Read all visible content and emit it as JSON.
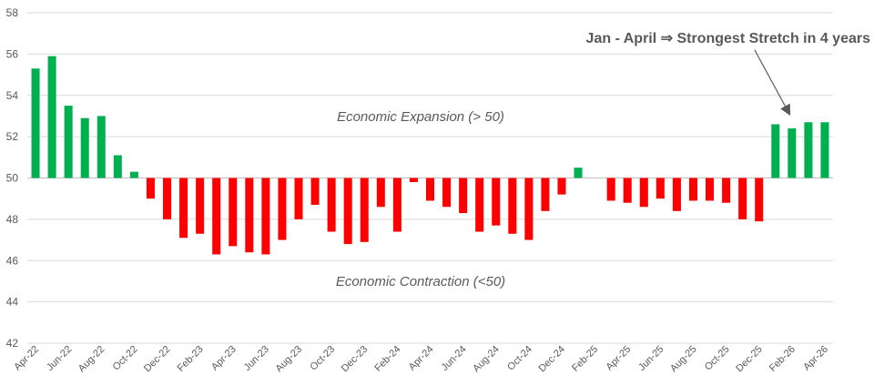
{
  "chart_data": {
    "type": "bar",
    "title": "",
    "xlabel": "",
    "ylabel": "",
    "ylim": [
      42,
      58
    ],
    "yticks": [
      42,
      44,
      46,
      48,
      50,
      52,
      54,
      56,
      58
    ],
    "baseline": 50,
    "grid": true,
    "legend": "none",
    "colors": {
      "above": "#00B050",
      "below": "#FF0000",
      "grid": "#D9D9D9",
      "axis": "#BFBFBF",
      "text": "#595959"
    },
    "categories": [
      "Apr-22",
      "May-22",
      "Jun-22",
      "Jul-22",
      "Aug-22",
      "Sep-22",
      "Oct-22",
      "Nov-22",
      "Dec-22",
      "Jan-23",
      "Feb-23",
      "Mar-23",
      "Apr-23",
      "May-23",
      "Jun-23",
      "Jul-23",
      "Aug-23",
      "Sep-23",
      "Oct-23",
      "Nov-23",
      "Dec-23",
      "Jan-24",
      "Feb-24",
      "Mar-24",
      "Apr-24",
      "May-24",
      "Jun-24",
      "Jul-24",
      "Aug-24",
      "Sep-24",
      "Oct-24",
      "Nov-24",
      "Dec-24",
      "Jan-25",
      "Feb-25",
      "Mar-25",
      "Apr-25",
      "May-25",
      "Jun-25",
      "Jul-25",
      "Aug-25",
      "Sep-25",
      "Oct-25",
      "Nov-25",
      "Dec-25",
      "Jan-26",
      "Feb-26",
      "Mar-26",
      "Apr-26"
    ],
    "tick_labels": [
      "Apr-22",
      "Jun-22",
      "Aug-22",
      "Oct-22",
      "Dec-22",
      "Feb-23",
      "Apr-23",
      "Jun-23",
      "Aug-23",
      "Oct-23",
      "Dec-23",
      "Feb-24",
      "Apr-24",
      "Jun-24",
      "Aug-24",
      "Oct-24",
      "Dec-24",
      "Feb-25",
      "Apr-25",
      "Jun-25",
      "Aug-25",
      "Oct-25",
      "Dec-25",
      "Feb-26",
      "Apr-26"
    ],
    "values": [
      55.3,
      55.9,
      53.5,
      52.9,
      53.0,
      51.1,
      50.3,
      49.0,
      48.0,
      47.1,
      47.3,
      46.3,
      46.7,
      46.4,
      46.3,
      47.0,
      48.0,
      48.7,
      47.4,
      46.8,
      46.9,
      48.6,
      47.4,
      49.8,
      48.9,
      48.6,
      48.3,
      47.4,
      47.7,
      47.3,
      47.0,
      48.4,
      49.2,
      50.5,
      null,
      48.9,
      48.8,
      48.6,
      49.0,
      48.4,
      48.9,
      48.9,
      48.8,
      48.0,
      47.9,
      52.6,
      52.4,
      52.7,
      52.7
    ],
    "annotations": {
      "expansion": "Economic Expansion (> 50)",
      "contraction": "Economic Contraction (<50)",
      "callout": "Jan - April ⇒ Strongest Stretch in 4 years"
    }
  }
}
